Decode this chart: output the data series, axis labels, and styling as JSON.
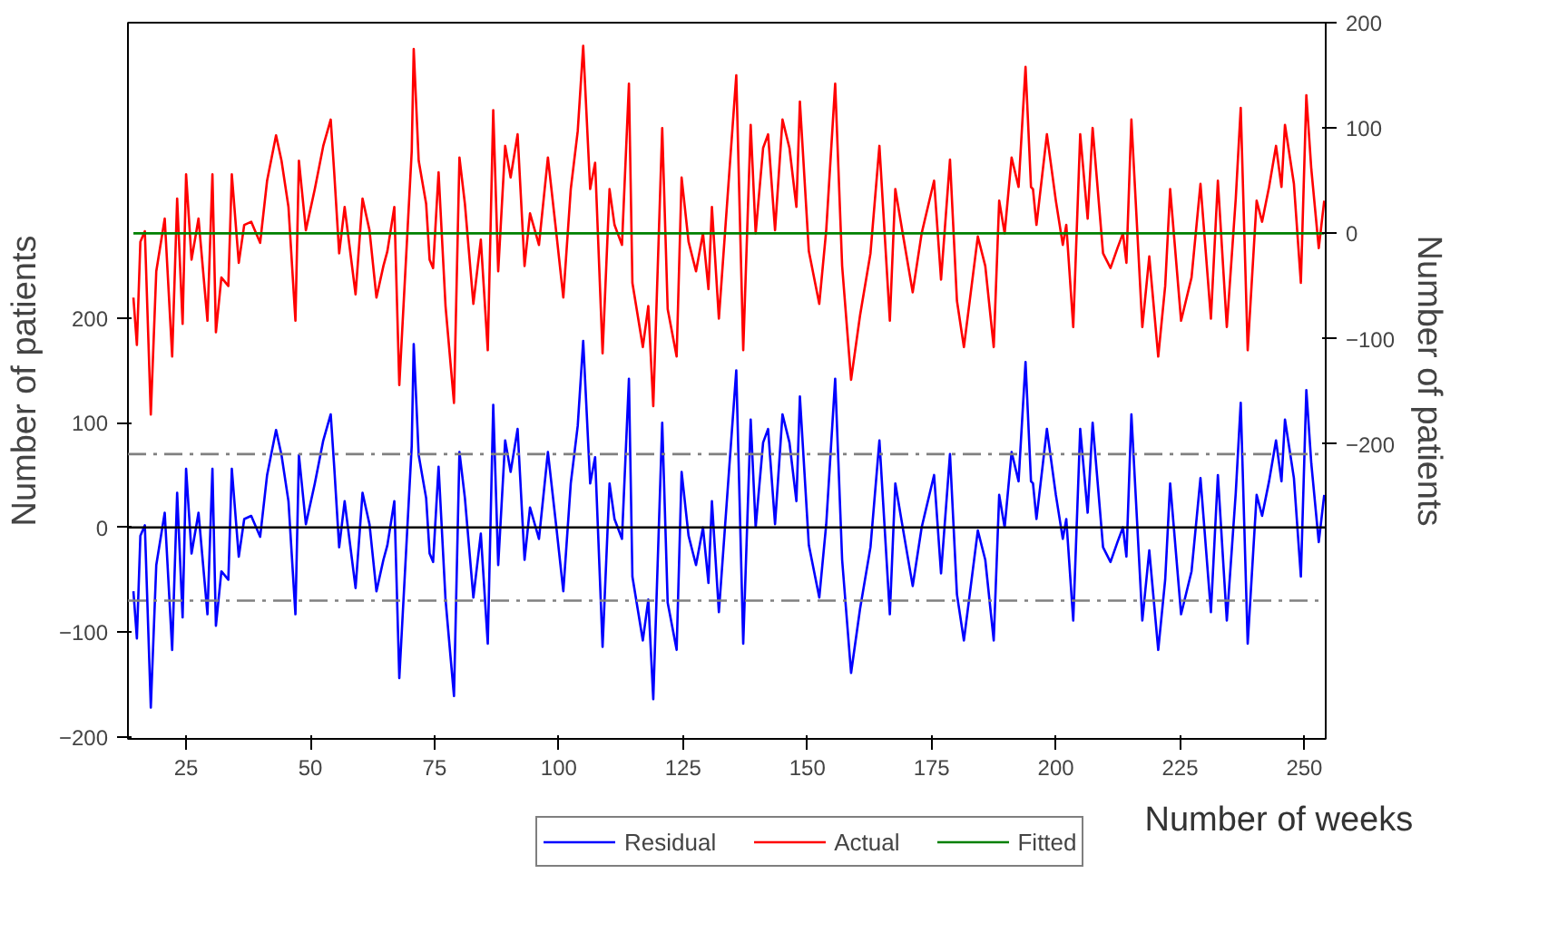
{
  "chart_data": {
    "type": "line",
    "xlabel": "Number of weeks",
    "ylabel": "Number of patients",
    "y2label": "Number of patients",
    "x": [
      14.4,
      15.1,
      15.8,
      16.7,
      17.9,
      19.0,
      20.7,
      22.2,
      23.2,
      24.3,
      25.0,
      26.1,
      27.5,
      29.3,
      30.3,
      31.0,
      32.1,
      33.5,
      34.2,
      35.6,
      36.7,
      38.1,
      39.9,
      41.3,
      43.1,
      44.2,
      45.6,
      47.0,
      47.7,
      49.1,
      50.9,
      52.6,
      54.1,
      54.8,
      55.8,
      56.9,
      59.1,
      60.5,
      61.9,
      63.3,
      64.7,
      65.5,
      66.9,
      67.9,
      70.4,
      70.8,
      71.8,
      73.3,
      74.0,
      74.7,
      75.8,
      77.2,
      78.9,
      80.0,
      81.1,
      82.8,
      84.3,
      85.7,
      86.8,
      87.8,
      89.2,
      90.3,
      91.7,
      93.1,
      94.2,
      96.0,
      97.8,
      99.5,
      100.9,
      102.4,
      103.8,
      104.9,
      106.3,
      107.3,
      108.8,
      110.2,
      111.2,
      112.7,
      114.1,
      114.8,
      116.9,
      118.0,
      119.0,
      120.8,
      121.9,
      123.7,
      124.7,
      126.1,
      127.6,
      129.0,
      130.1,
      130.8,
      132.2,
      134.3,
      135.7,
      137.1,
      138.6,
      139.6,
      141.1,
      142.1,
      143.5,
      145.0,
      146.4,
      147.8,
      148.5,
      150.3,
      152.4,
      153.8,
      155.6,
      157.0,
      158.8,
      160.6,
      162.7,
      164.5,
      166.6,
      167.7,
      169.4,
      171.2,
      173.0,
      175.5,
      176.9,
      178.7,
      180.1,
      181.5,
      184.3,
      185.8,
      187.5,
      188.6,
      189.7,
      191.1,
      192.5,
      193.9,
      195.0,
      195.4,
      196.1,
      198.2,
      200.0,
      201.4,
      202.1,
      203.5,
      204.9,
      206.4,
      207.4,
      209.5,
      211.0,
      212.4,
      213.5,
      214.2,
      215.2,
      217.4,
      218.8,
      220.6,
      222.0,
      223.0,
      225.2,
      227.3,
      229.1,
      231.2,
      232.6,
      234.4,
      236.2,
      237.2,
      238.6,
      240.4,
      241.5,
      242.9,
      244.3,
      245.4,
      246.1,
      247.9,
      249.3,
      250.4,
      251.4,
      252.9,
      254.0
    ],
    "series": [
      {
        "name": "Residual",
        "color": "#0000ff",
        "axis": "y",
        "values": [
          -61,
          -106,
          -8,
          2,
          -172,
          -36,
          14,
          -117,
          33,
          -86,
          56,
          -25,
          14,
          -83,
          56,
          -94,
          -42,
          -50,
          56,
          -28,
          8,
          11,
          -9,
          50,
          93,
          69,
          25,
          -83,
          69,
          3,
          42,
          83,
          108,
          58,
          -19,
          25,
          -58,
          33,
          3,
          -61,
          -31,
          -17,
          25,
          -144,
          78,
          175,
          69,
          28,
          -25,
          -33,
          58,
          -69,
          -161,
          72,
          28,
          -67,
          -6,
          -111,
          117,
          -36,
          83,
          53,
          94,
          -31,
          19,
          -11,
          72,
          0,
          -61,
          42,
          97,
          178,
          42,
          67,
          -114,
          42,
          8,
          -11,
          142,
          -47,
          -108,
          -69,
          -164,
          100,
          -72,
          -117,
          53,
          -8,
          -36,
          0,
          -53,
          25,
          -81,
          58,
          150,
          -111,
          103,
          0,
          81,
          94,
          3,
          108,
          81,
          25,
          125,
          -17,
          -67,
          3,
          142,
          -31,
          -139,
          -78,
          -19,
          83,
          -83,
          42,
          -6,
          -56,
          0,
          50,
          -44,
          70,
          -64,
          -108,
          -3,
          -31,
          -108,
          31,
          0,
          72,
          44,
          158,
          44,
          42,
          8,
          94,
          31,
          -11,
          8,
          -89,
          94,
          14,
          100,
          -19,
          -33,
          -14,
          0,
          -28,
          108,
          -89,
          -22,
          -117,
          -50,
          42,
          -83,
          -42,
          47,
          -81,
          50,
          -89,
          33,
          119,
          -111,
          31,
          11,
          44,
          83,
          44,
          103,
          47,
          -47,
          131,
          61,
          -14,
          31
        ]
      },
      {
        "name": "Actual",
        "color": "#ff0000",
        "axis": "y2",
        "values": [
          -61,
          -106,
          -8,
          2,
          -172,
          -36,
          14,
          -117,
          33,
          -86,
          56,
          -25,
          14,
          -83,
          56,
          -94,
          -42,
          -50,
          56,
          -28,
          8,
          11,
          -9,
          50,
          93,
          69,
          25,
          -83,
          69,
          3,
          42,
          83,
          108,
          58,
          -19,
          25,
          -58,
          33,
          3,
          -61,
          -31,
          -17,
          25,
          -144,
          78,
          175,
          69,
          28,
          -25,
          -33,
          58,
          -69,
          -161,
          72,
          28,
          -67,
          -6,
          -111,
          117,
          -36,
          83,
          53,
          94,
          -31,
          19,
          -11,
          72,
          0,
          -61,
          42,
          97,
          178,
          42,
          67,
          -114,
          42,
          8,
          -11,
          142,
          -47,
          -108,
          -69,
          -164,
          100,
          -72,
          -117,
          53,
          -8,
          -36,
          0,
          -53,
          25,
          -81,
          58,
          150,
          -111,
          103,
          0,
          81,
          94,
          3,
          108,
          81,
          25,
          125,
          -17,
          -67,
          3,
          142,
          -31,
          -139,
          -78,
          -19,
          83,
          -83,
          42,
          -6,
          -56,
          0,
          50,
          -44,
          70,
          -64,
          -108,
          -3,
          -31,
          -108,
          31,
          0,
          72,
          44,
          158,
          44,
          42,
          8,
          94,
          31,
          -11,
          8,
          -89,
          94,
          14,
          100,
          -19,
          -33,
          -14,
          0,
          -28,
          108,
          -89,
          -22,
          -117,
          -50,
          42,
          -83,
          -42,
          47,
          -81,
          50,
          -89,
          33,
          119,
          -111,
          31,
          11,
          44,
          83,
          44,
          103,
          47,
          -47,
          131,
          61,
          -14,
          31
        ]
      },
      {
        "name": "Fitted",
        "color": "#008000",
        "axis": "y2",
        "x": [
          14.4,
          254.0
        ],
        "values": [
          0,
          0
        ]
      }
    ],
    "xlim": [
      13.3,
      254.3
    ],
    "xticks": [
      25,
      50,
      75,
      100,
      125,
      150,
      175,
      200,
      225,
      250
    ],
    "ylim": [
      -202,
      482
    ],
    "yticks": [
      -200,
      -100,
      0,
      100,
      200
    ],
    "y2lim": [
      -480,
      200
    ],
    "y2ticks": [
      -200,
      -100,
      0,
      100,
      200
    ],
    "ref_lines": [
      {
        "axis": "y",
        "value": 0,
        "color": "#000000",
        "line_style": "solid"
      },
      {
        "axis": "y",
        "value": 70,
        "color": "#808080",
        "line_style": "dashed"
      },
      {
        "axis": "y",
        "value": -70,
        "color": "#808080",
        "line_style": "dashed"
      }
    ],
    "legend": "bottom",
    "marker": "none",
    "line_style": "solid"
  }
}
